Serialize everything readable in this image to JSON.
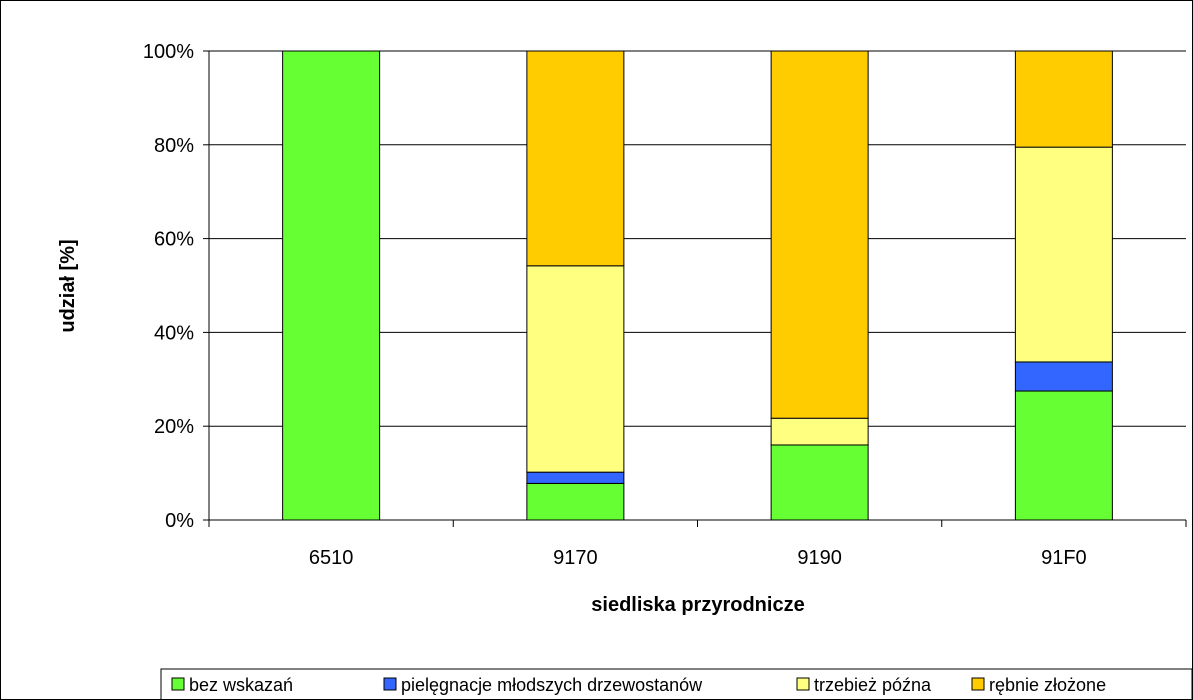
{
  "chart_data": {
    "type": "bar",
    "stacked": "percent",
    "title": "",
    "xlabel": "siedliska przyrodnicze",
    "ylabel": "udział  [%]",
    "categories": [
      "6510",
      "9170",
      "9190",
      "91F0"
    ],
    "ylim": [
      0,
      100
    ],
    "yticks": [
      "0%",
      "20%",
      "40%",
      "60%",
      "80%",
      "100%"
    ],
    "grid": true,
    "legend_position": "bottom",
    "series": [
      {
        "name": "bez wskazań",
        "color": "#66ff33",
        "values": [
          100,
          7.8,
          16,
          27.5
        ]
      },
      {
        "name": "pielęgnacje młodszych drzewostanów",
        "color": "#3366ff",
        "values": [
          0,
          2.4,
          0,
          6.2
        ]
      },
      {
        "name": "trzebież późna",
        "color": "#ffff80",
        "values": [
          0,
          44,
          5.7,
          45.8
        ]
      },
      {
        "name": "rębnie złożone",
        "color": "#ffcc00",
        "values": [
          0,
          45.8,
          78.3,
          20.5
        ]
      }
    ]
  }
}
